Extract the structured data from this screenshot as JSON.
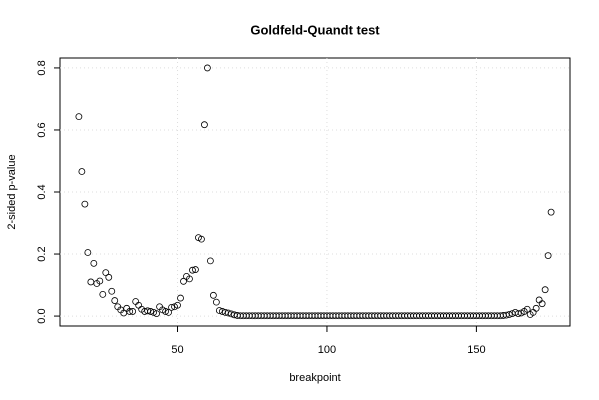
{
  "chart_data": {
    "type": "scatter",
    "title": "Goldfeld-Quandt test",
    "x_label": "breakpoint",
    "y_label": "2-sided p-value",
    "x": [
      17,
      18,
      19,
      20,
      21,
      22,
      23,
      24,
      25,
      26,
      27,
      28,
      29,
      30,
      31,
      32,
      33,
      34,
      35,
      36,
      37,
      38,
      39,
      40,
      41,
      42,
      43,
      44,
      45,
      46,
      47,
      48,
      49,
      50,
      51,
      52,
      53,
      54,
      55,
      56,
      57,
      58,
      59,
      60,
      61,
      62,
      63,
      64,
      65,
      66,
      67,
      68,
      69,
      70,
      71,
      72,
      73,
      74,
      75,
      76,
      77,
      78,
      79,
      80,
      81,
      82,
      83,
      84,
      85,
      86,
      87,
      88,
      89,
      90,
      91,
      92,
      93,
      94,
      95,
      96,
      97,
      98,
      99,
      100,
      101,
      102,
      103,
      104,
      105,
      106,
      107,
      108,
      109,
      110,
      111,
      112,
      113,
      114,
      115,
      116,
      117,
      118,
      119,
      120,
      121,
      122,
      123,
      124,
      125,
      126,
      127,
      128,
      129,
      130,
      131,
      132,
      133,
      134,
      135,
      136,
      137,
      138,
      139,
      140,
      141,
      142,
      143,
      144,
      145,
      146,
      147,
      148,
      149,
      150,
      151,
      152,
      153,
      154,
      155,
      156,
      157,
      158,
      159,
      160,
      161,
      162,
      163,
      164,
      165,
      166,
      167,
      168,
      169,
      170,
      171,
      172,
      173,
      174,
      175
    ],
    "values": [
      0.643,
      0.466,
      0.361,
      0.205,
      0.11,
      0.17,
      0.105,
      0.113,
      0.07,
      0.14,
      0.125,
      0.08,
      0.05,
      0.03,
      0.02,
      0.01,
      0.025,
      0.015,
      0.015,
      0.047,
      0.035,
      0.022,
      0.015,
      0.017,
      0.015,
      0.012,
      0.008,
      0.03,
      0.02,
      0.015,
      0.012,
      0.028,
      0.03,
      0.035,
      0.058,
      0.112,
      0.128,
      0.12,
      0.148,
      0.15,
      0.253,
      0.248,
      0.617,
      0.8,
      0.178,
      0.067,
      0.045,
      0.018,
      0.015,
      0.012,
      0.01,
      0.007,
      0.004,
      0.002,
      0.001,
      0.001,
      0.001,
      0.001,
      0.001,
      0.001,
      0.001,
      0.001,
      0.001,
      0.001,
      0.001,
      0.001,
      0.001,
      0.001,
      0.001,
      0.001,
      0.001,
      0.001,
      0.001,
      0.001,
      0.001,
      0.001,
      0.001,
      0.001,
      0.001,
      0.001,
      0.001,
      0.001,
      0.001,
      0.001,
      0.001,
      0.001,
      0.001,
      0.001,
      0.001,
      0.001,
      0.001,
      0.001,
      0.001,
      0.001,
      0.001,
      0.001,
      0.001,
      0.001,
      0.001,
      0.001,
      0.001,
      0.001,
      0.001,
      0.001,
      0.001,
      0.001,
      0.001,
      0.001,
      0.001,
      0.001,
      0.001,
      0.001,
      0.001,
      0.001,
      0.001,
      0.001,
      0.001,
      0.001,
      0.001,
      0.001,
      0.001,
      0.001,
      0.001,
      0.001,
      0.001,
      0.001,
      0.001,
      0.001,
      0.001,
      0.001,
      0.001,
      0.001,
      0.001,
      0.001,
      0.001,
      0.001,
      0.001,
      0.001,
      0.001,
      0.001,
      0.001,
      0.001,
      0.002,
      0.003,
      0.005,
      0.008,
      0.012,
      0.008,
      0.01,
      0.015,
      0.022,
      0.005,
      0.012,
      0.025,
      0.052,
      0.04,
      0.085,
      0.195,
      0.335
    ],
    "color": "#000000",
    "xlim": [
      10.68,
      181.32
    ],
    "xticks": [
      50,
      100,
      150
    ],
    "ylim": [
      -0.032,
      0.832
    ],
    "yticks": [
      {
        "value": 0,
        "label": "0.0"
      },
      0.2,
      0.4,
      0.6,
      0.8
    ],
    "grid": true
  }
}
